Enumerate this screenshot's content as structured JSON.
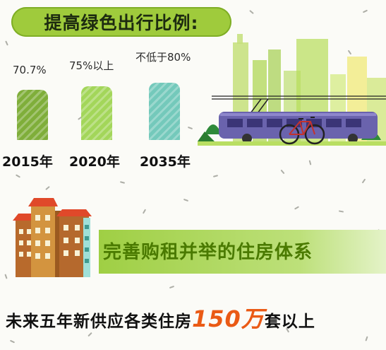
{
  "title": "提高绿色出行比例:",
  "bars": [
    {
      "year": "2015年",
      "label": "70.7%",
      "value": 70.7,
      "color": "#7fae3a"
    },
    {
      "year": "2020年",
      "label": "75%以上",
      "value": 75,
      "color": "#a3d65a"
    },
    {
      "year": "2035年",
      "label": "不低于80%",
      "value": 80,
      "color": "#74c9bb"
    }
  ],
  "housing": {
    "title": "完善购租并举的住房体系",
    "supply_prefix": "未来五年新供应各类住房",
    "supply_number": "150万",
    "supply_suffix": "套以上"
  }
}
